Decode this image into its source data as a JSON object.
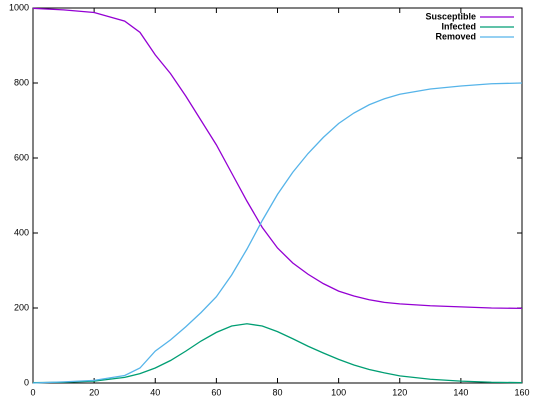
{
  "chart_data": {
    "type": "line",
    "x": [
      0,
      10,
      20,
      30,
      35,
      40,
      45,
      50,
      55,
      60,
      65,
      70,
      75,
      80,
      85,
      90,
      95,
      100,
      105,
      110,
      115,
      120,
      130,
      140,
      150,
      160
    ],
    "series": [
      {
        "name": "Susceptible",
        "color": "#9400d3",
        "values": [
          999,
          995,
          988,
          965,
          935,
          875,
          825,
          765,
          700,
          635,
          560,
          485,
          415,
          360,
          320,
          290,
          265,
          245,
          232,
          222,
          215,
          211,
          206,
          203,
          200,
          199
        ]
      },
      {
        "name": "Infected",
        "color": "#009e73",
        "values": [
          1,
          2,
          5,
          15,
          25,
          40,
          60,
          85,
          112,
          135,
          152,
          158,
          152,
          137,
          118,
          98,
          80,
          63,
          48,
          36,
          27,
          19,
          10,
          5,
          2,
          1
        ]
      },
      {
        "name": "Removed",
        "color": "#56b4e9",
        "values": [
          0,
          3,
          7,
          20,
          40,
          85,
          115,
          150,
          188,
          230,
          288,
          357,
          433,
          503,
          562,
          612,
          655,
          692,
          720,
          742,
          758,
          770,
          784,
          792,
          798,
          800
        ]
      }
    ],
    "xlim": [
      0,
      160
    ],
    "xticks": [
      0,
      20,
      40,
      60,
      80,
      100,
      120,
      140,
      160
    ],
    "ylim": [
      0,
      1000
    ],
    "yticks": [
      0,
      200,
      400,
      600,
      800,
      1000
    ],
    "legend": "top right"
  }
}
